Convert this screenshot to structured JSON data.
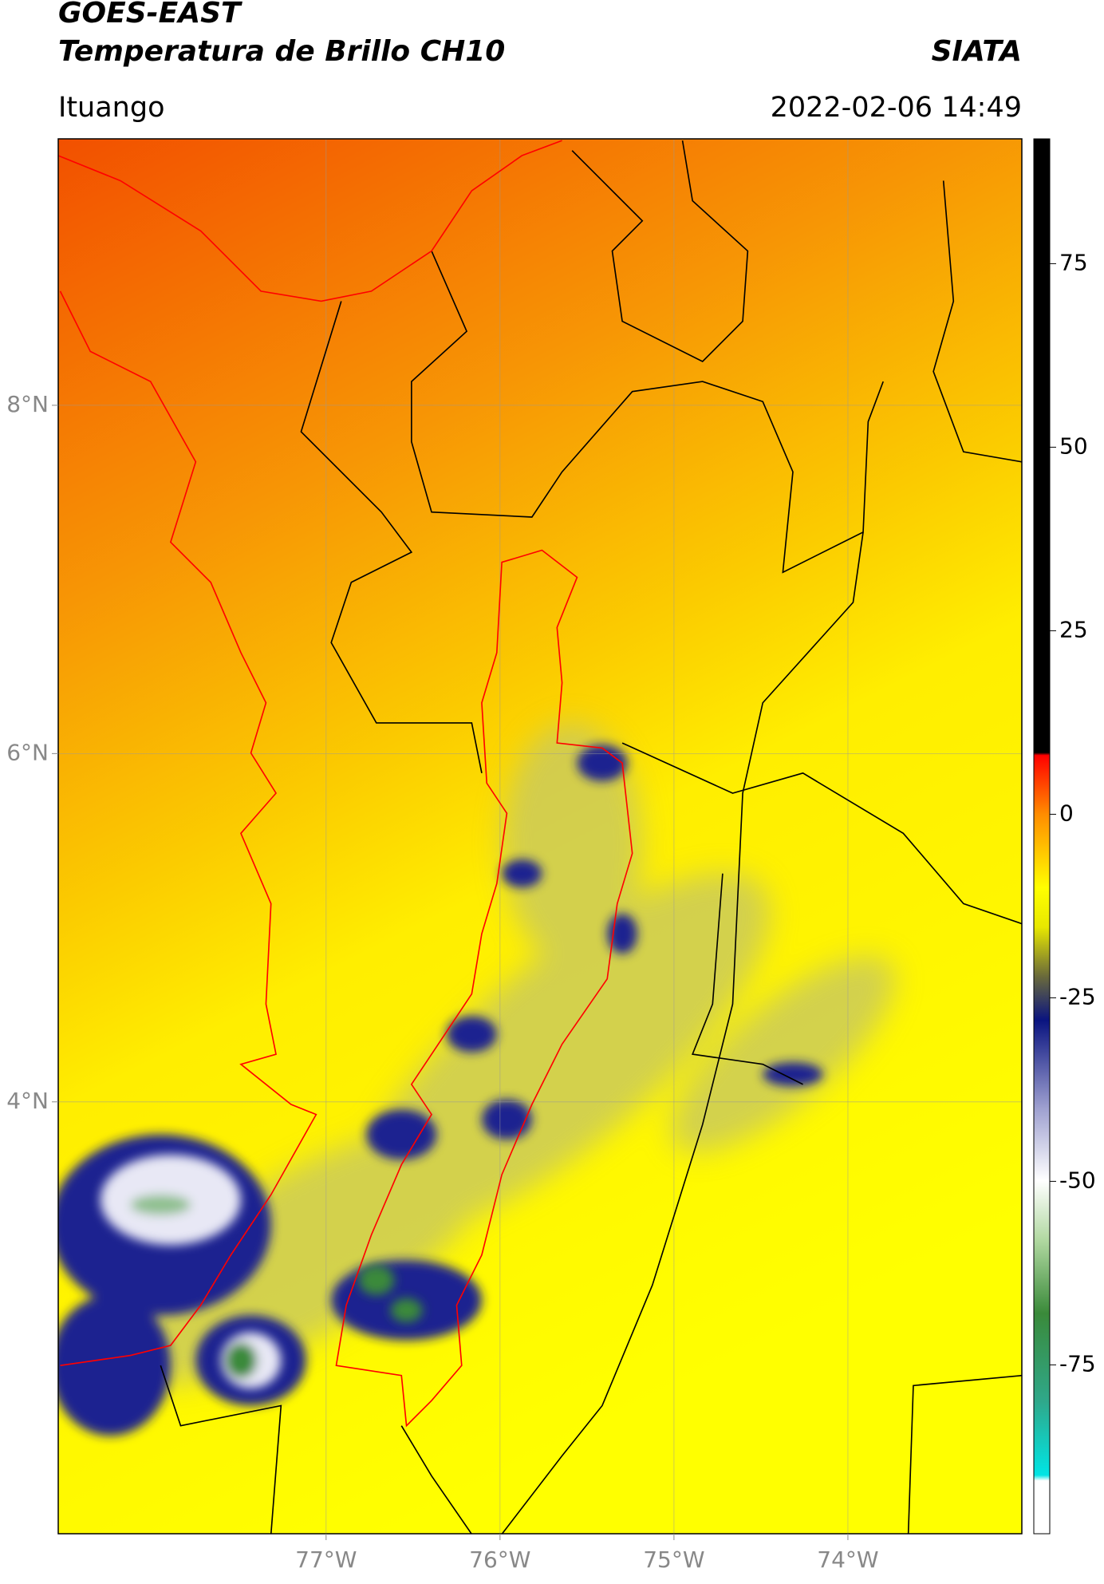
{
  "header": {
    "title": "GOES-EAST",
    "subtitle": "Temperatura de Brillo CH10",
    "agency": "SIATA",
    "location": "Ituango",
    "datetime": "2022-02-06 14:49"
  },
  "map": {
    "xlim": [
      -78.54,
      -73.0
    ],
    "ylim": [
      1.52,
      9.53
    ],
    "xticks": [
      {
        "value": -77,
        "label": "77°W"
      },
      {
        "value": -76,
        "label": "76°W"
      },
      {
        "value": -75,
        "label": "75°W"
      },
      {
        "value": -74,
        "label": "74°W"
      }
    ],
    "yticks": [
      {
        "value": 8,
        "label": "8°N"
      },
      {
        "value": 6,
        "label": "6°N"
      },
      {
        "value": 4,
        "label": "4°N"
      }
    ],
    "grid": true
  },
  "colorbar": {
    "lim": [
      -98,
      92
    ],
    "ticks": [
      75,
      50,
      25,
      0,
      -25,
      -50,
      -75
    ]
  }
}
